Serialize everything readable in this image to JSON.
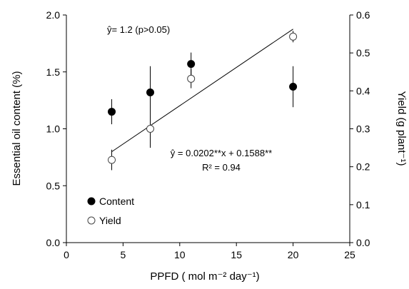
{
  "chart_data": {
    "type": "scatter",
    "xlabel": "PPFD ( mol m⁻² day⁻¹)",
    "ylabel_left": "Essential oil content (%)",
    "ylabel_right": "Yield (g plant⁻¹)",
    "xlim": [
      0,
      25
    ],
    "ylim_left": [
      0.0,
      2.0
    ],
    "ylim_right": [
      0.0,
      0.6
    ],
    "x_ticks": [
      "0",
      "5",
      "10",
      "15",
      "20",
      "25"
    ],
    "y_left_ticks": [
      "0.0",
      "0.5",
      "1.0",
      "1.5",
      "2.0"
    ],
    "y_right_ticks": [
      "0.0",
      "0.1",
      "0.2",
      "0.3",
      "0.4",
      "0.5",
      "0.6"
    ],
    "grid": false,
    "legend_position": "bottom-left",
    "series": [
      {
        "name": "Content",
        "axis": "left",
        "marker": "filled-circle",
        "x": [
          4,
          7.4,
          11,
          20
        ],
        "y": [
          1.15,
          1.32,
          1.57,
          1.37
        ],
        "error": [
          0.11,
          0.23,
          0.1,
          0.18
        ]
      },
      {
        "name": "Yield",
        "axis": "right",
        "marker": "open-circle",
        "x": [
          4,
          7.4,
          11,
          20
        ],
        "y": [
          0.218,
          0.3,
          0.432,
          0.543
        ],
        "error": [
          0.027,
          0.05,
          0.025,
          0.015
        ]
      }
    ],
    "trendline": {
      "axis": "right",
      "x_range": [
        4,
        20
      ],
      "slope": 0.0202,
      "intercept": 0.1588
    },
    "annotations": {
      "content_eq": "ŷ= 1.2 (p>0.05)",
      "yield_eq": "ŷ = 0.0202**x + 0.1588**",
      "yield_r2": "R² = 0.94"
    }
  }
}
